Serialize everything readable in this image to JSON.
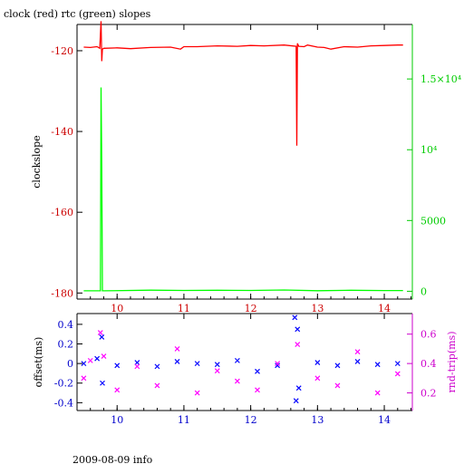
{
  "header": {
    "title": "clock (red) rtc (green) slopes"
  },
  "footer": {
    "text": "2009-08-09 info"
  },
  "chart_data": [
    {
      "type": "line",
      "title": "clock (red) rtc (green) slopes",
      "xlabel": "",
      "ylabel": "clockslope",
      "y2label": "",
      "xlim": [
        9.4,
        14.42
      ],
      "ylim": [
        -181.5,
        -113.5
      ],
      "y2lim": [
        -550,
        18850
      ],
      "xticks": [
        10,
        11,
        12,
        13,
        14
      ],
      "yticks": [
        -120,
        -140,
        -160,
        -180
      ],
      "y2ticks": [
        {
          "value": 0,
          "label": "0"
        },
        {
          "value": 5000,
          "label": "5000"
        },
        {
          "value": 10000,
          "label": "10⁴"
        },
        {
          "value": 15000,
          "label": "1.5×10⁴"
        }
      ],
      "grid": false,
      "series": [
        {
          "name": "clock",
          "color": "#ff0000",
          "axis": "left",
          "x": [
            9.5,
            9.6,
            9.7,
            9.74,
            9.76,
            9.77,
            9.78,
            9.8,
            10.0,
            10.2,
            10.5,
            10.8,
            10.95,
            11.0,
            11.2,
            11.5,
            11.8,
            12.0,
            12.2,
            12.5,
            12.68,
            12.69,
            12.7,
            12.72,
            12.8,
            12.85,
            13.0,
            13.1,
            13.2,
            13.4,
            13.6,
            13.8,
            14.0,
            14.2,
            14.28
          ],
          "y": [
            -119.1,
            -119.2,
            -119.0,
            -119.4,
            -112.7,
            -122.6,
            -119.6,
            -119.4,
            -119.3,
            -119.5,
            -119.2,
            -119.1,
            -119.6,
            -119.0,
            -119.0,
            -118.8,
            -118.9,
            -118.7,
            -118.8,
            -118.6,
            -118.9,
            -143.5,
            -118.2,
            -118.9,
            -119.0,
            -118.6,
            -119.1,
            -119.2,
            -119.6,
            -119.0,
            -119.1,
            -118.8,
            -118.7,
            -118.6,
            -118.6
          ]
        },
        {
          "name": "rtc",
          "color": "#00ff00",
          "axis": "right",
          "x": [
            9.5,
            9.75,
            9.76,
            9.77,
            9.78,
            9.79,
            9.8,
            10.5,
            11.0,
            11.5,
            12.0,
            12.5,
            13.0,
            13.5,
            14.0,
            14.28
          ],
          "y": [
            30,
            30,
            14400,
            8700,
            30,
            30,
            30,
            80,
            60,
            70,
            60,
            90,
            40,
            70,
            50,
            50
          ]
        }
      ]
    },
    {
      "type": "scatter",
      "xlabel": "",
      "ylabel": "offset(ms)",
      "y2label": "rnd-trip(ms)",
      "xlim": [
        9.4,
        14.42
      ],
      "ylim": [
        -0.48,
        0.51
      ],
      "y2lim": [
        0.08,
        0.74
      ],
      "xticks": [
        10,
        11,
        12,
        13,
        14
      ],
      "yticks": [
        0.4,
        0.2,
        0,
        -0.2,
        -0.4
      ],
      "y2ticks": [
        0.6,
        0.4,
        0.2
      ],
      "grid": false,
      "series": [
        {
          "name": "offset",
          "color": "#0000ff",
          "axis": "left",
          "marker": "x",
          "x": [
            9.5,
            9.7,
            9.77,
            9.78,
            10.0,
            10.3,
            10.6,
            10.9,
            11.2,
            11.5,
            11.8,
            12.1,
            12.4,
            12.66,
            12.68,
            12.7,
            12.72,
            13.0,
            13.3,
            13.6,
            13.9,
            14.2
          ],
          "y": [
            0.0,
            0.05,
            0.27,
            -0.2,
            -0.02,
            0.01,
            -0.03,
            0.02,
            0.0,
            -0.01,
            0.03,
            -0.08,
            -0.02,
            0.47,
            -0.38,
            0.35,
            -0.25,
            0.01,
            -0.02,
            0.02,
            -0.01,
            0.0
          ]
        },
        {
          "name": "rnd-trip",
          "color": "#ff00ff",
          "axis": "right",
          "marker": "x",
          "x": [
            9.5,
            9.6,
            9.75,
            9.8,
            10.0,
            10.3,
            10.6,
            10.9,
            11.2,
            11.5,
            11.8,
            12.1,
            12.4,
            12.7,
            13.0,
            13.3,
            13.6,
            13.9,
            14.2
          ],
          "y": [
            0.3,
            0.42,
            0.61,
            0.45,
            0.22,
            0.38,
            0.25,
            0.5,
            0.2,
            0.35,
            0.28,
            0.22,
            0.4,
            0.53,
            0.3,
            0.25,
            0.48,
            0.2,
            0.33
          ]
        }
      ]
    }
  ]
}
